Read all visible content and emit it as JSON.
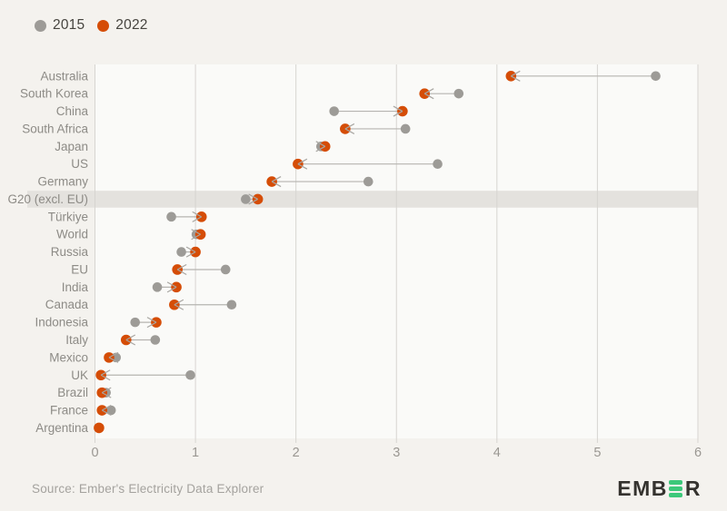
{
  "legend": {
    "items": [
      {
        "label": "2015",
        "color": "#9d9b97"
      },
      {
        "label": "2022",
        "color": "#d54d07"
      }
    ],
    "position": "top-left"
  },
  "chart_data": {
    "type": "dumbbell-dot",
    "orientation": "horizontal",
    "categories": [
      "Australia",
      "South Korea",
      "China",
      "South Africa",
      "Japan",
      "US",
      "Germany",
      "G20 (excl. EU)",
      "Türkiye",
      "World",
      "Russia",
      "EU",
      "India",
      "Canada",
      "Indonesia",
      "Italy",
      "Mexico",
      "UK",
      "Brazil",
      "France",
      "Argentina"
    ],
    "series": [
      {
        "name": "2015",
        "color": "#9d9b97",
        "values": [
          5.58,
          3.62,
          2.38,
          3.09,
          2.25,
          3.41,
          2.72,
          1.5,
          0.76,
          1.01,
          0.86,
          1.3,
          0.62,
          1.36,
          0.4,
          0.6,
          0.21,
          0.95,
          0.11,
          0.16,
          0.04
        ]
      },
      {
        "name": "2022",
        "color": "#d54d07",
        "values": [
          4.14,
          3.28,
          3.06,
          2.49,
          2.29,
          2.02,
          1.76,
          1.62,
          1.06,
          1.05,
          1.0,
          0.82,
          0.81,
          0.79,
          0.61,
          0.31,
          0.14,
          0.06,
          0.07,
          0.07,
          0.04
        ]
      }
    ],
    "x_ticks": [
      "0",
      "1",
      "2",
      "3",
      "4",
      "5",
      "6"
    ],
    "xlim": [
      0,
      6
    ],
    "grid": "vertical",
    "arrow": "from-2015-to-2022",
    "highlight_category": "G20 (excl. EU)",
    "legend_position": "top-left"
  },
  "colors": {
    "page_background": "#f4f2ee",
    "plot_background": "#fafaf8",
    "gridline": "#d7d5d1",
    "highlight_band": "#e4e2de",
    "connector": "#b6b4b0",
    "arrowhead": "#a8a6a2",
    "row_label": "#8d8b86",
    "tick_label": "#9a9792",
    "logo_green": "#3cc87a",
    "logo_text": "#35332f"
  },
  "source": {
    "text": "Source: Ember's Electricity Data Explorer"
  },
  "logo": {
    "text_before_green_e": "EMB",
    "text_after_green_e": "R"
  }
}
